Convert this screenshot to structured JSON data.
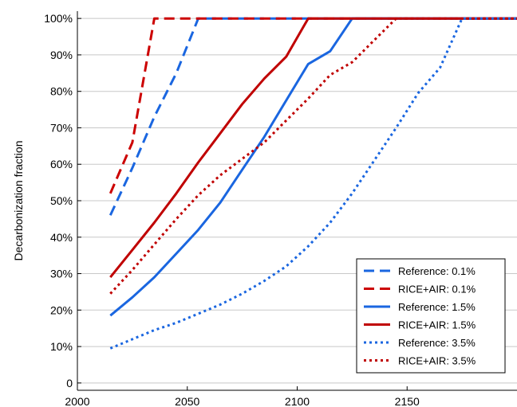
{
  "chart_data": {
    "type": "line",
    "title": "",
    "xlabel": "",
    "ylabel": "Decarbonization fraction",
    "xlim": [
      2000,
      2200
    ],
    "ylim": [
      -2,
      102
    ],
    "xticks": [
      2000,
      2050,
      2100,
      2150
    ],
    "xtick_labels": [
      "2000",
      "2050",
      "2100",
      "2150"
    ],
    "yticks": [
      0,
      10,
      20,
      30,
      40,
      50,
      60,
      70,
      80,
      90,
      100
    ],
    "ytick_labels": [
      "0",
      "10%",
      "20%",
      "30%",
      "40%",
      "50%",
      "60%",
      "70%",
      "80%",
      "90%",
      "100%"
    ],
    "grid": "horizontal",
    "legend_position": "bottom-right",
    "series": [
      {
        "name": "Reference: 0.1%",
        "color": "#1a66e0",
        "style": "dashed",
        "x": [
          2015,
          2025,
          2035,
          2045,
          2055,
          2200
        ],
        "y": [
          46,
          59,
          73,
          85,
          100,
          100
        ]
      },
      {
        "name": "RICE+AIR: 0.1%",
        "color": "#cc0000",
        "style": "dashed",
        "x": [
          2015,
          2025,
          2035,
          2200
        ],
        "y": [
          52,
          66,
          100,
          100
        ]
      },
      {
        "name": "Reference: 1.5%",
        "color": "#1a66e0",
        "style": "solid",
        "x": [
          2015,
          2025,
          2035,
          2045,
          2055,
          2065,
          2075,
          2085,
          2095,
          2105,
          2115,
          2125,
          2200
        ],
        "y": [
          18.5,
          23.5,
          29,
          35.5,
          42,
          49.5,
          58.5,
          67.5,
          77.5,
          87.5,
          91,
          100,
          100
        ]
      },
      {
        "name": "RICE+AIR: 1.5%",
        "color": "#c00000",
        "style": "solid",
        "x": [
          2015,
          2025,
          2035,
          2045,
          2055,
          2065,
          2075,
          2085,
          2095,
          2105,
          2200
        ],
        "y": [
          29,
          36.5,
          44,
          52,
          60.5,
          68.5,
          76.5,
          83.5,
          89.5,
          100,
          100
        ]
      },
      {
        "name": "Reference: 3.5%",
        "color": "#1a66e0",
        "style": "dotted",
        "x": [
          2015,
          2025,
          2035,
          2045,
          2055,
          2065,
          2075,
          2085,
          2095,
          2105,
          2115,
          2125,
          2135,
          2145,
          2155,
          2165,
          2175,
          2200
        ],
        "y": [
          9.5,
          12,
          14.5,
          16.5,
          19,
          21.5,
          24.5,
          28,
          32,
          37.5,
          44,
          52,
          61,
          70,
          79.5,
          86.5,
          100,
          100
        ]
      },
      {
        "name": "RICE+AIR: 3.5%",
        "color": "#c00000",
        "style": "dotted",
        "x": [
          2015,
          2025,
          2035,
          2045,
          2055,
          2065,
          2075,
          2085,
          2095,
          2105,
          2115,
          2125,
          2135,
          2145,
          2200
        ],
        "y": [
          24.5,
          31,
          38,
          45,
          51.5,
          57,
          61.5,
          66,
          72,
          78,
          84.5,
          88,
          94,
          100,
          100
        ]
      }
    ]
  }
}
